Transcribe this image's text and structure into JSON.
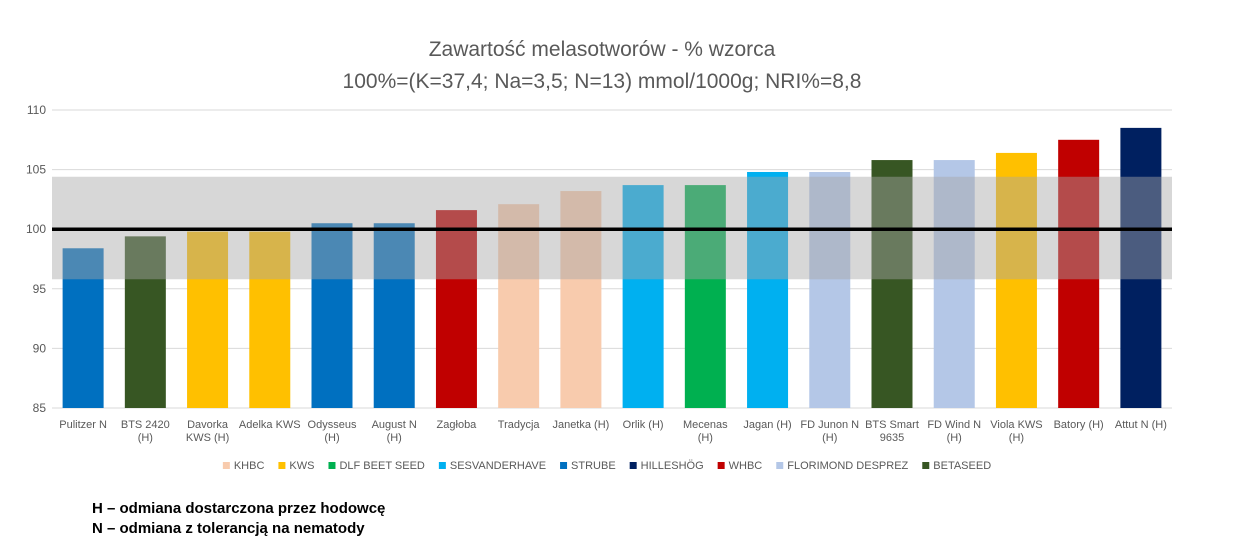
{
  "chart_data": {
    "type": "bar",
    "title": [
      "Zawartość melasotworów - % wzorca",
      "100%=(K=37,4; Na=3,5; N=13) mmol/1000g; NRI%=8,8"
    ],
    "xlabel": "",
    "ylabel": "",
    "ylim": [
      85,
      110
    ],
    "yticks": [
      85,
      90,
      95,
      100,
      105,
      110
    ],
    "grid": true,
    "reference_line": 100,
    "tolerance_band": [
      95.8,
      104.4
    ],
    "legend_position": "bottom",
    "categories": [
      [
        "Pulitzer  N"
      ],
      [
        "BTS 2420",
        "(H)"
      ],
      [
        "Davorka",
        "KWS (H)"
      ],
      [
        "Adelka KWS"
      ],
      [
        "Odysseus",
        "(H)"
      ],
      [
        "August N",
        "(H)"
      ],
      [
        "Zagłoba"
      ],
      [
        "Tradycja"
      ],
      [
        "Janetka (H)"
      ],
      [
        "Orlik (H)"
      ],
      [
        "Mecenas",
        "(H)"
      ],
      [
        "Jagan (H)"
      ],
      [
        "FD Junon  N",
        "(H)"
      ],
      [
        "BTS Smart",
        "9635"
      ],
      [
        "FD Wind  N",
        "(H)"
      ],
      [
        "Viola KWS",
        "(H)"
      ],
      [
        "Batory (H)"
      ],
      [
        "Attut  N (H)"
      ]
    ],
    "values": [
      98.4,
      99.4,
      99.8,
      99.8,
      100.5,
      100.5,
      101.6,
      102.1,
      103.2,
      103.7,
      103.7,
      104.8,
      104.8,
      105.8,
      105.8,
      106.4,
      107.5,
      108.5
    ],
    "bar_breeders": [
      "STRUBE",
      "BETASEED",
      "KWS",
      "KWS",
      "STRUBE",
      "STRUBE",
      "WHBC",
      "KHBC",
      "KHBC",
      "SESVANDERHAVE",
      "DLF BEET SEED",
      "SESVANDERHAVE",
      "FLORIMOND DESPREZ",
      "BETASEED",
      "FLORIMOND DESPREZ",
      "KWS",
      "WHBC",
      "HILLESHÖG"
    ],
    "legend": [
      {
        "name": "KHBC",
        "color": "#F8CBAD"
      },
      {
        "name": "KWS",
        "color": "#FFC000"
      },
      {
        "name": "DLF BEET SEED",
        "color": "#00B050"
      },
      {
        "name": "SESVANDERHAVE",
        "color": "#00B0F0"
      },
      {
        "name": "STRUBE",
        "color": "#0070C0"
      },
      {
        "name": "HILLESHÖG",
        "color": "#002060"
      },
      {
        "name": "WHBC",
        "color": "#C00000"
      },
      {
        "name": "FLORIMOND DESPREZ",
        "color": "#B4C7E7"
      },
      {
        "name": "BETASEED",
        "color": "#375623"
      }
    ]
  },
  "footnotes": {
    "h_note": "H – odmiana dostarczona przez hodowcę",
    "n_note": "N – odmiana z tolerancją na nematody"
  }
}
